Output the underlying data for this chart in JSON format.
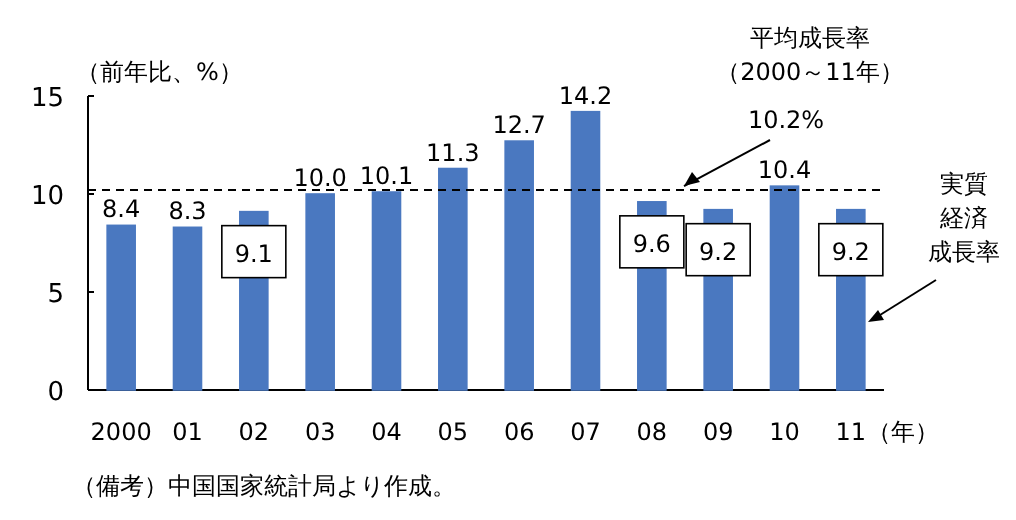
{
  "chart_data": {
    "type": "bar",
    "ylabel": "（前年比、%）",
    "xlabel": "（年）",
    "categories": [
      "2000",
      "01",
      "02",
      "03",
      "04",
      "05",
      "06",
      "07",
      "08",
      "09",
      "10",
      "11"
    ],
    "series": [
      {
        "name": "実質経済成長率",
        "color": "#4a78c0",
        "values": [
          8.4,
          8.3,
          9.1,
          10.0,
          10.1,
          11.3,
          12.7,
          14.2,
          9.6,
          9.2,
          10.4,
          9.2
        ]
      }
    ],
    "value_labels": [
      "8.4",
      "8.3",
      "9.1",
      "10.0",
      "10.1",
      "11.3",
      "12.7",
      "14.2",
      "9.6",
      "9.2",
      "10.4",
      "9.2"
    ],
    "ylim": [
      0,
      15
    ],
    "yticks": [
      0,
      5,
      10,
      15
    ],
    "grid": false,
    "ref_lines": [
      {
        "axis": "y",
        "value": 10.2,
        "label": "10.2%",
        "line_style": "dashed",
        "color": "#000000"
      }
    ],
    "annotations": [
      "平均成長率",
      "（2000～11年）",
      "（備考）中国国家統計局より作成。"
    ]
  }
}
